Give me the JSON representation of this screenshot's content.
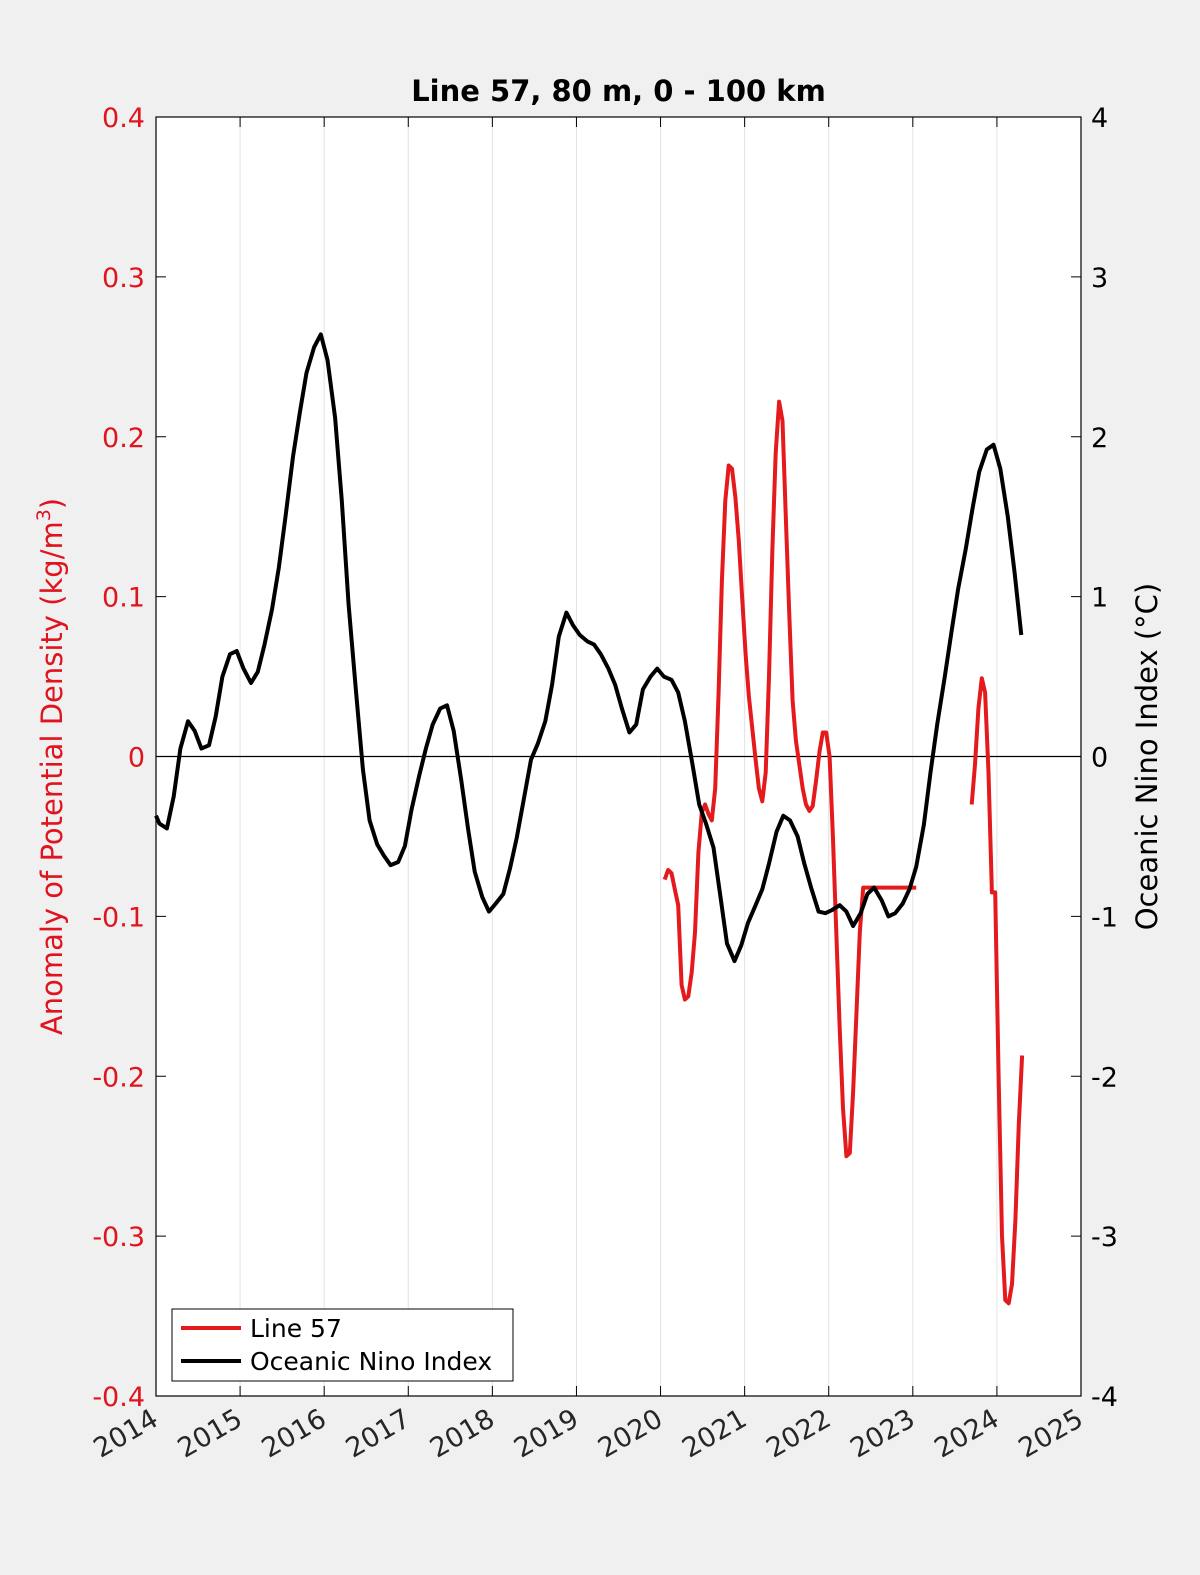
{
  "chart_data": {
    "type": "line",
    "title": "Line 57, 80 m, 0 - 100 km",
    "xlabel": "",
    "ylabel_left_main": "Anomaly of Potential Density (kg/m",
    "ylabel_left_sup": "3",
    "ylabel_left_close": ")",
    "ylabel_right": "Oceanic Nino Index (°C)",
    "xlim": [
      2014,
      2025
    ],
    "ylim_left": [
      -0.4,
      0.4
    ],
    "ylim_right": [
      -4,
      4
    ],
    "x_ticks": [
      "2014",
      "2015",
      "2016",
      "2017",
      "2018",
      "2019",
      "2020",
      "2021",
      "2022",
      "2023",
      "2024",
      "2025"
    ],
    "y_ticks_left": [
      "-0.4",
      "-0.3",
      "-0.2",
      "-0.1",
      "0",
      "0.1",
      "0.2",
      "0.3",
      "0.4"
    ],
    "y_ticks_right": [
      "-4",
      "-3",
      "-2",
      "-1",
      "0",
      "1",
      "2",
      "3",
      "4"
    ],
    "grid": "vertical",
    "zero_line": true,
    "legend_position": "bottom-left",
    "colors": {
      "left_axis": "#e0141e",
      "right_axis": "#000000",
      "background": "#f0f0f0",
      "plot_bg": "#ffffff"
    },
    "series": [
      {
        "name": "Line 57",
        "axis": "left",
        "color": "#e41a1c",
        "segments": [
          {
            "x": [
              2020.05,
              2020.09,
              2020.13,
              2020.17,
              2020.21,
              2020.25,
              2020.29,
              2020.33,
              2020.37,
              2020.41,
              2020.45,
              2020.49,
              2020.53,
              2020.57,
              2020.61,
              2020.65,
              2020.69,
              2020.73,
              2020.77,
              2020.81,
              2020.85,
              2020.89,
              2020.93,
              2020.97,
              2021.01,
              2021.05,
              2021.09,
              2021.13,
              2021.17,
              2021.21,
              2021.25,
              2021.29,
              2021.33,
              2021.37,
              2021.41,
              2021.45,
              2021.49,
              2021.53,
              2021.57,
              2021.61,
              2021.65,
              2021.69,
              2021.73,
              2021.77,
              2021.81,
              2021.85,
              2021.89,
              2021.93,
              2021.97,
              2022.01,
              2022.05,
              2022.09,
              2022.13,
              2022.17,
              2022.21,
              2022.25,
              2022.29,
              2022.33,
              2022.37,
              2022.41,
              2022.45,
              2022.49,
              2022.53,
              2022.57,
              2022.61,
              2022.65,
              2022.69,
              2022.73,
              2022.77,
              2022.81,
              2022.85,
              2022.89,
              2022.93,
              2022.97,
              2023.01,
              2023.04
            ],
            "y": [
              -0.077,
              -0.071,
              -0.073,
              -0.083,
              -0.093,
              -0.143,
              -0.152,
              -0.15,
              -0.135,
              -0.11,
              -0.06,
              -0.035,
              -0.03,
              -0.036,
              -0.04,
              -0.02,
              0.04,
              0.11,
              0.16,
              0.182,
              0.18,
              0.162,
              0.135,
              0.1,
              0.065,
              0.038,
              0.018,
              -0.002,
              -0.02,
              -0.028,
              -0.01,
              0.05,
              0.13,
              0.19,
              0.222,
              0.21,
              0.15,
              0.09,
              0.035,
              0.01,
              -0.005,
              -0.02,
              -0.03,
              -0.034,
              -0.031,
              -0.015,
              0.003,
              0.015,
              0.015,
              0.0,
              -0.05,
              -0.11,
              -0.17,
              -0.22,
              -0.25,
              -0.248,
              -0.21,
              -0.16,
              -0.11,
              -0.082,
              -0.082,
              -0.082,
              -0.082,
              -0.082,
              -0.082,
              -0.082,
              -0.082,
              -0.082,
              -0.082,
              -0.082,
              -0.082,
              -0.082,
              -0.082,
              -0.082,
              -0.082,
              -0.082
            ]
          },
          {
            "x": [
              2023.7,
              2023.74,
              2023.78,
              2023.82,
              2023.86,
              2023.9,
              2023.94,
              2023.98,
              2024.02,
              2024.06,
              2024.1,
              2024.14,
              2024.18,
              2024.22,
              2024.26,
              2024.3
            ],
            "y": [
              -0.03,
              -0.005,
              0.03,
              0.049,
              0.04,
              -0.01,
              -0.085,
              -0.085,
              -0.2,
              -0.3,
              -0.34,
              -0.342,
              -0.33,
              -0.29,
              -0.23,
              -0.187
            ]
          }
        ]
      },
      {
        "name": "Oceanic Nino Index",
        "axis": "right",
        "color": "#000000",
        "segments": [
          {
            "x": [
              2014.0,
              2014.04,
              2014.13,
              2014.21,
              2014.29,
              2014.38,
              2014.46,
              2014.54,
              2014.63,
              2014.71,
              2014.79,
              2014.88,
              2014.96,
              2015.04,
              2015.13,
              2015.21,
              2015.29,
              2015.38,
              2015.46,
              2015.54,
              2015.63,
              2015.71,
              2015.79,
              2015.88,
              2015.96,
              2016.04,
              2016.13,
              2016.21,
              2016.29,
              2016.38,
              2016.46,
              2016.54,
              2016.63,
              2016.71,
              2016.79,
              2016.88,
              2016.96,
              2017.04,
              2017.13,
              2017.21,
              2017.29,
              2017.38,
              2017.46,
              2017.54,
              2017.63,
              2017.71,
              2017.79,
              2017.88,
              2017.96,
              2018.04,
              2018.13,
              2018.21,
              2018.29,
              2018.38,
              2018.46,
              2018.54,
              2018.63,
              2018.71,
              2018.79,
              2018.88,
              2018.96,
              2019.04,
              2019.13,
              2019.21,
              2019.29,
              2019.38,
              2019.46,
              2019.54,
              2019.63,
              2019.71,
              2019.79,
              2019.88,
              2019.96,
              2020.04,
              2020.13,
              2020.21,
              2020.29,
              2020.38,
              2020.46,
              2020.54,
              2020.63,
              2020.71,
              2020.79,
              2020.88,
              2020.96,
              2021.04,
              2021.13,
              2021.21,
              2021.29,
              2021.38,
              2021.46,
              2021.54,
              2021.63,
              2021.71,
              2021.79,
              2021.88,
              2021.96,
              2022.04,
              2022.13,
              2022.21,
              2022.29,
              2022.38,
              2022.46,
              2022.54,
              2022.63,
              2022.71,
              2022.79,
              2022.88,
              2022.96,
              2023.04,
              2023.13,
              2023.21,
              2023.29,
              2023.38,
              2023.46,
              2023.54,
              2023.63,
              2023.71,
              2023.79,
              2023.88,
              2023.96,
              2024.04,
              2024.13,
              2024.21,
              2024.29
            ],
            "y": [
              -0.37,
              -0.42,
              -0.45,
              -0.25,
              0.05,
              0.22,
              0.16,
              0.05,
              0.07,
              0.25,
              0.5,
              0.64,
              0.66,
              0.55,
              0.46,
              0.53,
              0.7,
              0.92,
              1.18,
              1.5,
              1.88,
              2.15,
              2.4,
              2.56,
              2.64,
              2.48,
              2.12,
              1.6,
              0.95,
              0.4,
              -0.08,
              -0.4,
              -0.55,
              -0.62,
              -0.68,
              -0.66,
              -0.56,
              -0.33,
              -0.12,
              0.05,
              0.2,
              0.3,
              0.32,
              0.16,
              -0.15,
              -0.45,
              -0.72,
              -0.88,
              -0.97,
              -0.92,
              -0.86,
              -0.7,
              -0.51,
              -0.25,
              -0.02,
              0.08,
              0.22,
              0.45,
              0.75,
              0.9,
              0.82,
              0.76,
              0.72,
              0.7,
              0.64,
              0.55,
              0.45,
              0.3,
              0.15,
              0.2,
              0.42,
              0.5,
              0.55,
              0.5,
              0.48,
              0.4,
              0.22,
              -0.05,
              -0.3,
              -0.42,
              -0.57,
              -0.87,
              -1.17,
              -1.28,
              -1.18,
              -1.04,
              -0.93,
              -0.83,
              -0.67,
              -0.47,
              -0.37,
              -0.4,
              -0.5,
              -0.67,
              -0.82,
              -0.97,
              -0.98,
              -0.96,
              -0.93,
              -0.97,
              -1.06,
              -0.98,
              -0.86,
              -0.82,
              -0.9,
              -1.0,
              -0.98,
              -0.92,
              -0.83,
              -0.69,
              -0.43,
              -0.1,
              0.2,
              0.5,
              0.78,
              1.05,
              1.3,
              1.55,
              1.78,
              1.92,
              1.95,
              1.8,
              1.5,
              1.15,
              0.76
            ]
          }
        ]
      }
    ]
  }
}
